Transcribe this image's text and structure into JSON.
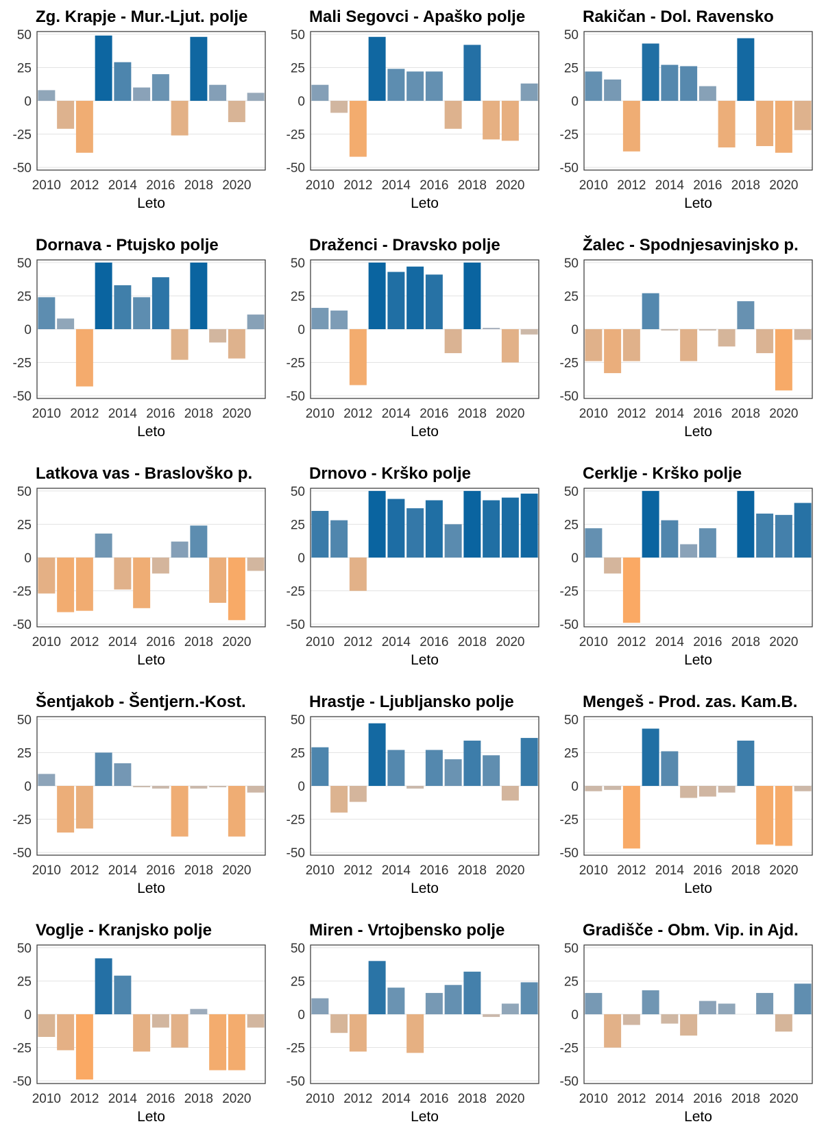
{
  "chart_data": [
    {
      "type": "bar",
      "title": "Zg. Krapje - Mur.-Ljut. polje",
      "xlabel": "Leto",
      "ylabel": "",
      "x": [
        2010,
        2011,
        2012,
        2013,
        2014,
        2015,
        2016,
        2017,
        2018,
        2019,
        2020,
        2021
      ],
      "values": [
        8,
        -21,
        -39,
        49,
        29,
        10,
        20,
        -26,
        48,
        12,
        -16,
        6
      ],
      "ylim": [
        -52,
        52
      ],
      "yticks": [
        50,
        25,
        0,
        -25,
        -50
      ],
      "xticks": [
        2010,
        2012,
        2014,
        2016,
        2018,
        2020
      ],
      "grid": true
    },
    {
      "type": "bar",
      "title": "Mali Segovci - Apaško polje",
      "xlabel": "Leto",
      "ylabel": "",
      "x": [
        2010,
        2011,
        2012,
        2013,
        2014,
        2015,
        2016,
        2017,
        2018,
        2019,
        2020,
        2021
      ],
      "values": [
        12,
        -9,
        -42,
        48,
        24,
        22,
        22,
        -21,
        42,
        -29,
        -30,
        13
      ],
      "ylim": [
        -52,
        52
      ],
      "yticks": [
        50,
        25,
        0,
        -25,
        -50
      ],
      "xticks": [
        2010,
        2012,
        2014,
        2016,
        2018,
        2020
      ],
      "grid": true
    },
    {
      "type": "bar",
      "title": "Rakičan - Dol. Ravensko",
      "xlabel": "Leto",
      "ylabel": "",
      "x": [
        2010,
        2011,
        2012,
        2013,
        2014,
        2015,
        2016,
        2017,
        2018,
        2019,
        2020,
        2021
      ],
      "values": [
        22,
        16,
        -38,
        43,
        27,
        26,
        11,
        -35,
        47,
        -34,
        -39,
        -22
      ],
      "ylim": [
        -52,
        52
      ],
      "yticks": [
        50,
        25,
        0,
        -25,
        -50
      ],
      "xticks": [
        2010,
        2012,
        2014,
        2016,
        2018,
        2020
      ],
      "grid": true
    },
    {
      "type": "bar",
      "title": "Dornava - Ptujsko polje",
      "xlabel": "Leto",
      "ylabel": "",
      "x": [
        2010,
        2011,
        2012,
        2013,
        2014,
        2015,
        2016,
        2017,
        2018,
        2019,
        2020,
        2021
      ],
      "values": [
        24,
        8,
        -43,
        50,
        33,
        24,
        39,
        -23,
        50,
        -10,
        -22,
        11
      ],
      "ylim": [
        -52,
        52
      ],
      "yticks": [
        50,
        25,
        0,
        -25,
        -50
      ],
      "xticks": [
        2010,
        2012,
        2014,
        2016,
        2018,
        2020
      ],
      "grid": true
    },
    {
      "type": "bar",
      "title": "Draženci - Dravsko polje",
      "xlabel": "Leto",
      "ylabel": "",
      "x": [
        2010,
        2011,
        2012,
        2013,
        2014,
        2015,
        2016,
        2017,
        2018,
        2019,
        2020,
        2021
      ],
      "values": [
        16,
        14,
        -42,
        50,
        43,
        47,
        41,
        -18,
        50,
        1,
        -25,
        -4
      ],
      "ylim": [
        -52,
        52
      ],
      "yticks": [
        50,
        25,
        0,
        -25,
        -50
      ],
      "xticks": [
        2010,
        2012,
        2014,
        2016,
        2018,
        2020
      ],
      "grid": true
    },
    {
      "type": "bar",
      "title": "Žalec - Spodnjesavinjsko p.",
      "xlabel": "Leto",
      "ylabel": "",
      "x": [
        2010,
        2011,
        2012,
        2013,
        2014,
        2015,
        2016,
        2017,
        2018,
        2019,
        2020,
        2021
      ],
      "values": [
        -24,
        -33,
        -24,
        27,
        -1,
        -24,
        -1,
        -13,
        21,
        -18,
        -46,
        -8
      ],
      "ylim": [
        -52,
        52
      ],
      "yticks": [
        50,
        25,
        0,
        -25,
        -50
      ],
      "xticks": [
        2010,
        2012,
        2014,
        2016,
        2018,
        2020
      ],
      "grid": true
    },
    {
      "type": "bar",
      "title": "Latkova vas - Braslovško p.",
      "xlabel": "Leto",
      "ylabel": "",
      "x": [
        2010,
        2011,
        2012,
        2013,
        2014,
        2015,
        2016,
        2017,
        2018,
        2019,
        2020,
        2021
      ],
      "values": [
        -27,
        -41,
        -40,
        18,
        -24,
        -38,
        -12,
        12,
        24,
        -34,
        -47,
        -10
      ],
      "ylim": [
        -52,
        52
      ],
      "yticks": [
        50,
        25,
        0,
        -25,
        -50
      ],
      "xticks": [
        2010,
        2012,
        2014,
        2016,
        2018,
        2020
      ],
      "grid": true
    },
    {
      "type": "bar",
      "title": "Drnovo - Krško polje",
      "xlabel": "Leto",
      "ylabel": "",
      "x": [
        2010,
        2011,
        2012,
        2013,
        2014,
        2015,
        2016,
        2017,
        2018,
        2019,
        2020,
        2021
      ],
      "values": [
        35,
        28,
        -25,
        50,
        44,
        37,
        43,
        25,
        50,
        43,
        45,
        48
      ],
      "ylim": [
        -52,
        52
      ],
      "yticks": [
        50,
        25,
        0,
        -25,
        -50
      ],
      "xticks": [
        2010,
        2012,
        2014,
        2016,
        2018,
        2020
      ],
      "grid": true
    },
    {
      "type": "bar",
      "title": "Cerklje - Krško polje",
      "xlabel": "Leto",
      "ylabel": "",
      "x": [
        2010,
        2011,
        2012,
        2013,
        2014,
        2015,
        2016,
        2017,
        2018,
        2019,
        2020,
        2021
      ],
      "values": [
        22,
        -12,
        -49,
        50,
        28,
        10,
        22,
        0,
        50,
        33,
        32,
        41
      ],
      "ylim": [
        -52,
        52
      ],
      "yticks": [
        50,
        25,
        0,
        -25,
        -50
      ],
      "xticks": [
        2010,
        2012,
        2014,
        2016,
        2018,
        2020
      ],
      "grid": true
    },
    {
      "type": "bar",
      "title": "Šentjakob - Šentjern.-Kost.",
      "xlabel": "Leto",
      "ylabel": "",
      "x": [
        2010,
        2011,
        2012,
        2013,
        2014,
        2015,
        2016,
        2017,
        2018,
        2019,
        2020,
        2021
      ],
      "values": [
        9,
        -35,
        -32,
        25,
        17,
        -1,
        -2,
        -38,
        -2,
        -1,
        -38,
        -5
      ],
      "ylim": [
        -52,
        52
      ],
      "yticks": [
        50,
        25,
        0,
        -25,
        -50
      ],
      "xticks": [
        2010,
        2012,
        2014,
        2016,
        2018,
        2020
      ],
      "grid": true
    },
    {
      "type": "bar",
      "title": "Hrastje - Ljubljansko polje",
      "xlabel": "Leto",
      "ylabel": "",
      "x": [
        2010,
        2011,
        2012,
        2013,
        2014,
        2015,
        2016,
        2017,
        2018,
        2019,
        2020,
        2021
      ],
      "values": [
        29,
        -20,
        -12,
        47,
        27,
        -2,
        27,
        20,
        34,
        23,
        -11,
        36
      ],
      "ylim": [
        -52,
        52
      ],
      "yticks": [
        50,
        25,
        0,
        -25,
        -50
      ],
      "xticks": [
        2010,
        2012,
        2014,
        2016,
        2018,
        2020
      ],
      "grid": true
    },
    {
      "type": "bar",
      "title": "Mengeš - Prod. zas. Kam.B.",
      "xlabel": "Leto",
      "ylabel": "",
      "x": [
        2010,
        2011,
        2012,
        2013,
        2014,
        2015,
        2016,
        2017,
        2018,
        2019,
        2020,
        2021
      ],
      "values": [
        -4,
        -3,
        -47,
        43,
        26,
        -9,
        -8,
        -5,
        34,
        -44,
        -45,
        -4
      ],
      "ylim": [
        -52,
        52
      ],
      "yticks": [
        50,
        25,
        0,
        -25,
        -50
      ],
      "xticks": [
        2010,
        2012,
        2014,
        2016,
        2018,
        2020
      ],
      "grid": true
    },
    {
      "type": "bar",
      "title": "Voglje - Kranjsko polje",
      "xlabel": "Leto",
      "ylabel": "",
      "x": [
        2010,
        2011,
        2012,
        2013,
        2014,
        2015,
        2016,
        2017,
        2018,
        2019,
        2020,
        2021
      ],
      "values": [
        -17,
        -27,
        -49,
        42,
        29,
        -28,
        -10,
        -25,
        4,
        -42,
        -42,
        -10
      ],
      "ylim": [
        -52,
        52
      ],
      "yticks": [
        50,
        25,
        0,
        -25,
        -50
      ],
      "xticks": [
        2010,
        2012,
        2014,
        2016,
        2018,
        2020
      ],
      "grid": true
    },
    {
      "type": "bar",
      "title": "Miren - Vrtojbensko polje",
      "xlabel": "Leto",
      "ylabel": "",
      "x": [
        2010,
        2011,
        2012,
        2013,
        2014,
        2015,
        2016,
        2017,
        2018,
        2019,
        2020,
        2021
      ],
      "values": [
        12,
        -14,
        -28,
        40,
        20,
        -29,
        16,
        22,
        32,
        -2,
        8,
        24
      ],
      "ylim": [
        -52,
        52
      ],
      "yticks": [
        50,
        25,
        0,
        -25,
        -50
      ],
      "xticks": [
        2010,
        2012,
        2014,
        2016,
        2018,
        2020
      ],
      "grid": true
    },
    {
      "type": "bar",
      "title": "Gradišče - Obm. Vip. in Ajd.",
      "xlabel": "Leto",
      "ylabel": "",
      "x": [
        2010,
        2011,
        2012,
        2013,
        2014,
        2015,
        2016,
        2017,
        2018,
        2019,
        2020,
        2021
      ],
      "values": [
        16,
        -25,
        -8,
        18,
        -7,
        -16,
        10,
        8,
        0,
        16,
        -13,
        23
      ],
      "ylim": [
        -52,
        52
      ],
      "yticks": [
        50,
        25,
        0,
        -25,
        -50
      ],
      "xticks": [
        2010,
        2012,
        2014,
        2016,
        2018,
        2020
      ],
      "grid": true
    }
  ],
  "colors": {
    "positive_max": "#0a64a0",
    "positive_min": "#aab2be",
    "negative_min": "#c8b9ae",
    "negative_max": "#fba962",
    "grid": "#e3e3e3",
    "border": "#333333",
    "text": "#000000",
    "tick_text": "#333333"
  }
}
